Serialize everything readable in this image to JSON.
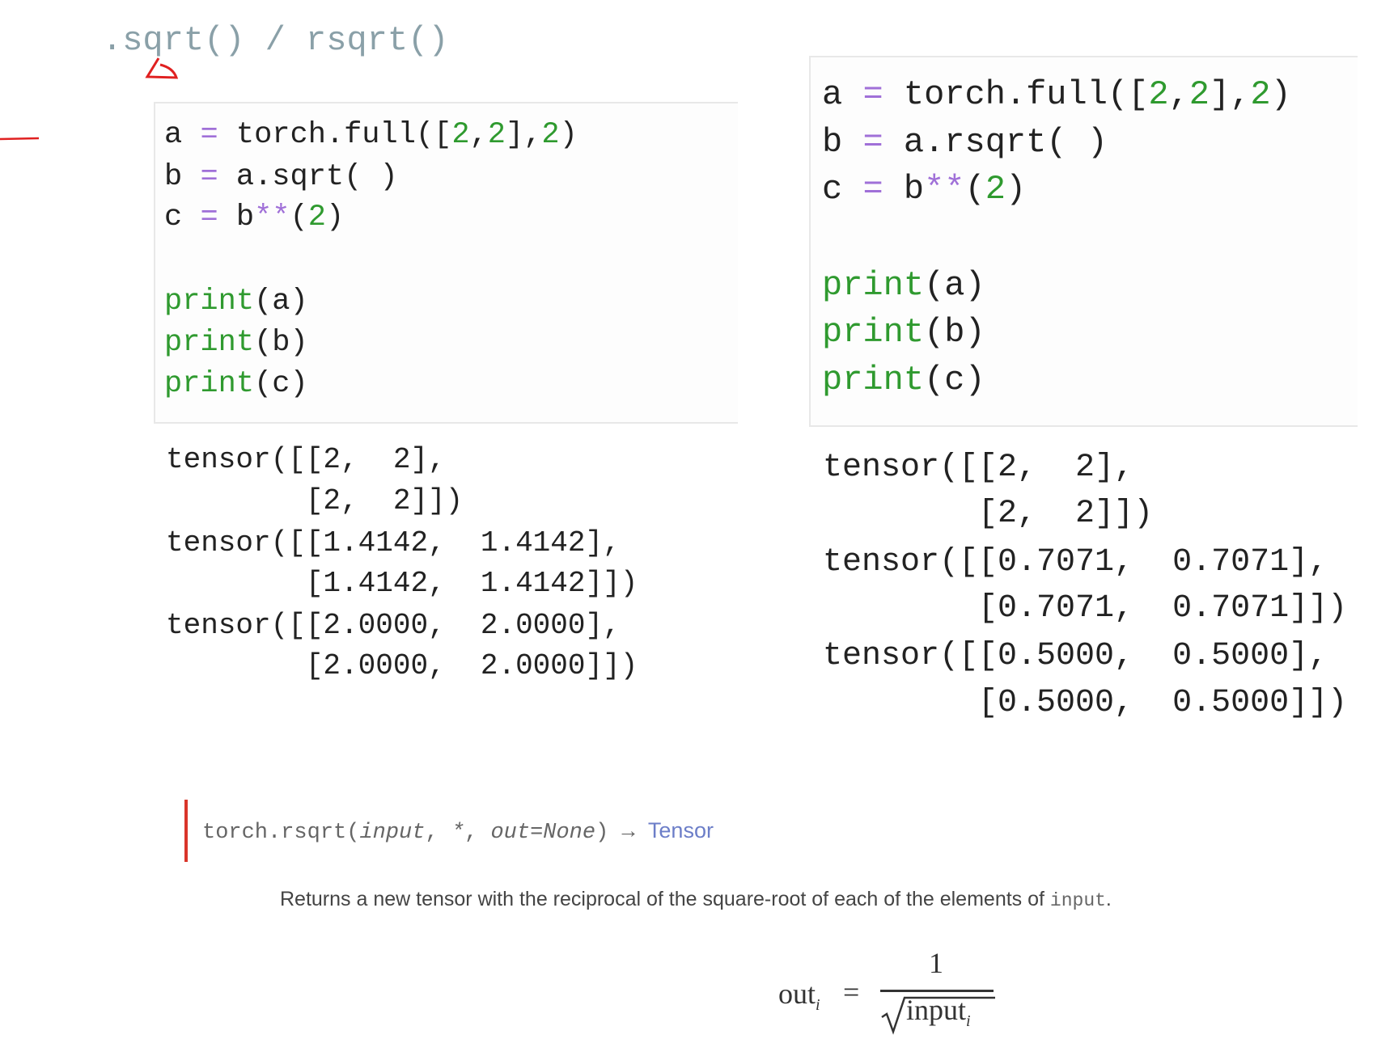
{
  "title": ".sqrt() / rsqrt()",
  "left_panel": {
    "code": {
      "line1": {
        "var": "a",
        "eq": "=",
        "pre": "torch.full([",
        "n1": "2",
        "c1": ",",
        "n2": "2",
        "c2": "],",
        "n3": "2",
        "post": ")"
      },
      "line2": {
        "var": "b",
        "eq": "=",
        "expr": "a.sqrt( )"
      },
      "line3": {
        "var": "c",
        "eq": "=",
        "pre": "b",
        "op": "**",
        "open": "(",
        "n": "2",
        "close": ")"
      },
      "prints": [
        {
          "kw": "print",
          "arg": "(a)"
        },
        {
          "kw": "print",
          "arg": "(b)"
        },
        {
          "kw": "print",
          "arg": "(c)"
        }
      ]
    },
    "output": [
      "tensor([[2,  2],",
      "        [2,  2]])",
      "tensor([[1.4142,  1.4142],",
      "        [1.4142,  1.4142]])",
      "tensor([[2.0000,  2.0000],",
      "        [2.0000,  2.0000]])"
    ]
  },
  "right_panel": {
    "code": {
      "line1": {
        "var": "a",
        "eq": "=",
        "pre": "torch.full([",
        "n1": "2",
        "c1": ",",
        "n2": "2",
        "c2": "],",
        "n3": "2",
        "post": ")"
      },
      "line2": {
        "var": "b",
        "eq": "=",
        "expr": "a.rsqrt( )"
      },
      "line3": {
        "var": "c",
        "eq": "=",
        "pre": "b",
        "op": "**",
        "open": "(",
        "n": "2",
        "close": ")"
      },
      "prints": [
        {
          "kw": "print",
          "arg": "(a)"
        },
        {
          "kw": "print",
          "arg": "(b)"
        },
        {
          "kw": "print",
          "arg": "(c)"
        }
      ]
    },
    "output": [
      "tensor([[2,  2],",
      "        [2,  2]])",
      "tensor([[0.7071,  0.7071],",
      "        [0.7071,  0.7071]])",
      "tensor([[0.5000,  0.5000],",
      "        [0.5000,  0.5000]])"
    ]
  },
  "docs": {
    "signature": {
      "fn": "torch.rsqrt(",
      "arg1": "input",
      "sep1": ", ",
      "star": "*",
      "sep2": ", ",
      "arg2": "out=None",
      "close": ")",
      "arrow": " → ",
      "ret": "Tensor"
    },
    "description": {
      "text": "Returns a new tensor with the reciprocal of the square-root of each of the elements of ",
      "code": "input",
      "end": "."
    },
    "formula": {
      "lhs": "out",
      "sub": "i",
      "eq": "=",
      "num": "1",
      "den": "input",
      "den_sub": "i"
    }
  },
  "colors": {
    "annotation": "#e02020",
    "keyword": "#2f9a2f",
    "operator": "#a070d8",
    "doc_bar": "#d9352a",
    "link": "#6c7ec8"
  }
}
